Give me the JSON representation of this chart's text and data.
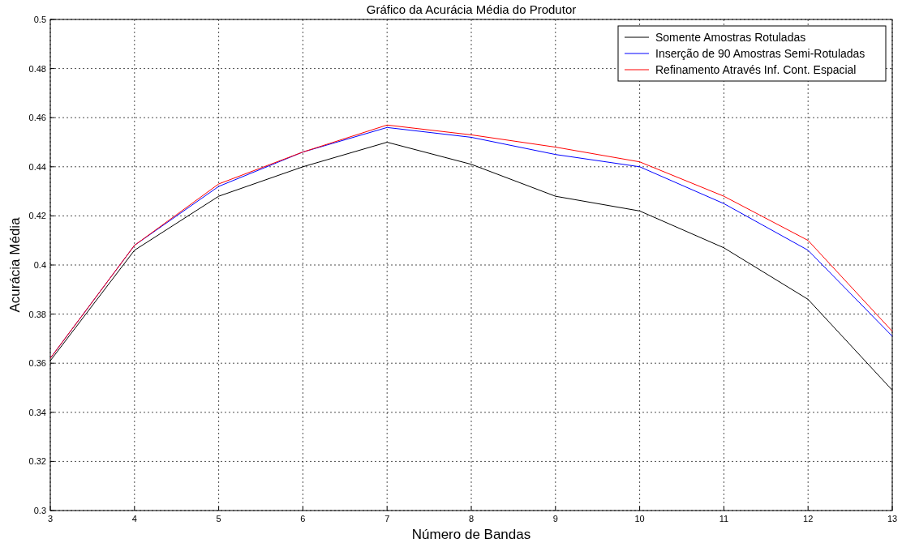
{
  "chart_data": {
    "type": "line",
    "title": "Gráfico da Acurácia Média do Produtor",
    "xlabel": "Número de Bandas",
    "ylabel": "Acurácia Média",
    "x": [
      3,
      4,
      5,
      6,
      7,
      8,
      9,
      10,
      11,
      12,
      13
    ],
    "series": [
      {
        "name": "Somente Amostras Rotuladas",
        "color": "#000000",
        "values": [
          0.361,
          0.406,
          0.428,
          0.44,
          0.45,
          0.441,
          0.428,
          0.422,
          0.407,
          0.386,
          0.349
        ]
      },
      {
        "name": "Inserção de 90 Amostras Semi-Rotuladas",
        "color": "#0000ff",
        "values": [
          0.362,
          0.408,
          0.432,
          0.446,
          0.456,
          0.452,
          0.445,
          0.44,
          0.425,
          0.406,
          0.371
        ]
      },
      {
        "name": "Refinamento Através Inf. Cont. Espacial",
        "color": "#ff0000",
        "values": [
          0.362,
          0.408,
          0.433,
          0.446,
          0.457,
          0.453,
          0.448,
          0.442,
          0.428,
          0.41,
          0.373
        ]
      }
    ],
    "xlim": [
      3,
      13
    ],
    "xticks": [
      3,
      4,
      5,
      6,
      7,
      8,
      9,
      10,
      11,
      12,
      13
    ],
    "ylim": [
      0.3,
      0.5
    ],
    "yticks": [
      0.3,
      0.32,
      0.34,
      0.36,
      0.38,
      0.4,
      0.42,
      0.44,
      0.46,
      0.48,
      0.5
    ],
    "grid": true,
    "legend": "top right",
    "line_style": "solid"
  }
}
